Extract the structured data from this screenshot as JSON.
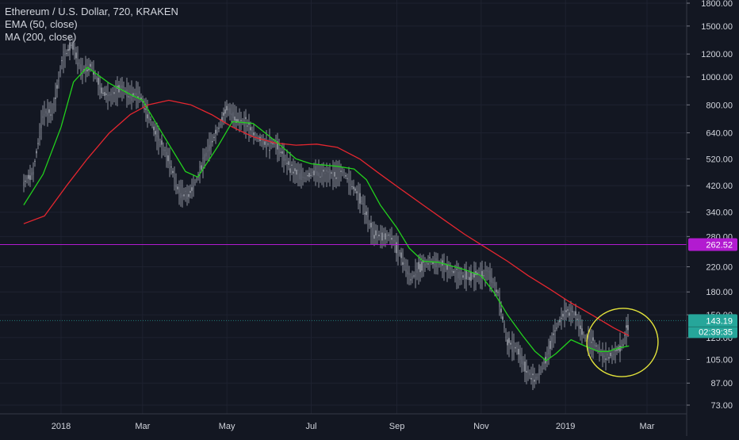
{
  "chart_data": {
    "type": "candlestick",
    "title": "Ethereum / U.S. Dollar, 720, KRAKEN",
    "indicators": [
      "EMA (50, close)",
      "MA (200, close)"
    ],
    "y_scale": "log",
    "ylim": [
      67,
      1900
    ],
    "y_ticks": [
      1800,
      1500,
      1200,
      1000,
      800,
      640,
      520,
      420,
      340,
      280,
      220,
      180,
      150,
      125,
      105,
      87,
      73
    ],
    "y_tick_labels": [
      "1800.00",
      "1500.00",
      "1200.00",
      "1000.00",
      "800.00",
      "640.00",
      "520.00",
      "420.00",
      "340.00",
      "280.00",
      "220.00",
      "180.00",
      "150.00",
      "125.00",
      "105.00",
      "87.00",
      "73.00"
    ],
    "x_ticks": [
      "2018-01-01",
      "2018-03-01",
      "2018-05-01",
      "2018-07-01",
      "2018-09-01",
      "2018-11-01",
      "2019-01-01",
      "2019-03-01"
    ],
    "x_tick_labels": [
      "2018",
      "Mar",
      "May",
      "Jul",
      "Sep",
      "Nov",
      "2019",
      "Mar"
    ],
    "price_close": {
      "dates": [
        "2017-12-05",
        "2017-12-12",
        "2017-12-19",
        "2017-12-26",
        "2018-01-02",
        "2018-01-09",
        "2018-01-16",
        "2018-01-23",
        "2018-01-30",
        "2018-02-06",
        "2018-02-13",
        "2018-02-20",
        "2018-02-27",
        "2018-03-06",
        "2018-03-13",
        "2018-03-20",
        "2018-03-27",
        "2018-04-03",
        "2018-04-10",
        "2018-04-17",
        "2018-04-24",
        "2018-05-01",
        "2018-05-08",
        "2018-05-15",
        "2018-05-22",
        "2018-05-29",
        "2018-06-05",
        "2018-06-12",
        "2018-06-19",
        "2018-06-26",
        "2018-07-03",
        "2018-07-10",
        "2018-07-17",
        "2018-07-24",
        "2018-07-31",
        "2018-08-07",
        "2018-08-14",
        "2018-08-21",
        "2018-08-28",
        "2018-09-04",
        "2018-09-11",
        "2018-09-18",
        "2018-09-25",
        "2018-10-02",
        "2018-10-09",
        "2018-10-16",
        "2018-10-23",
        "2018-10-30",
        "2018-11-06",
        "2018-11-13",
        "2018-11-20",
        "2018-11-27",
        "2018-12-04",
        "2018-12-11",
        "2018-12-18",
        "2018-12-25",
        "2019-01-01",
        "2019-01-08",
        "2019-01-15",
        "2019-01-22",
        "2019-01-29",
        "2019-02-05",
        "2019-02-12",
        "2019-02-16"
      ],
      "values": [
        430,
        470,
        750,
        760,
        1150,
        1300,
        1050,
        1100,
        900,
        850,
        920,
        870,
        870,
        720,
        600,
        520,
        400,
        390,
        450,
        560,
        650,
        780,
        720,
        690,
        620,
        590,
        590,
        520,
        470,
        450,
        470,
        460,
        460,
        470,
        420,
        370,
        290,
        280,
        280,
        240,
        200,
        220,
        230,
        225,
        215,
        205,
        205,
        205,
        210,
        180,
        120,
        115,
        95,
        90,
        105,
        135,
        155,
        150,
        125,
        118,
        108,
        110,
        120,
        143.19
      ]
    },
    "series": [
      {
        "name": "EMA (50, close)",
        "color": "#22d11d",
        "dates": [
          "2017-12-05",
          "2017-12-19",
          "2018-01-01",
          "2018-01-10",
          "2018-01-20",
          "2018-02-05",
          "2018-02-20",
          "2018-03-01",
          "2018-03-15",
          "2018-04-01",
          "2018-04-10",
          "2018-04-25",
          "2018-05-05",
          "2018-05-20",
          "2018-06-05",
          "2018-06-20",
          "2018-07-01",
          "2018-07-20",
          "2018-08-01",
          "2018-08-10",
          "2018-08-20",
          "2018-09-01",
          "2018-09-10",
          "2018-09-20",
          "2018-10-01",
          "2018-10-20",
          "2018-11-01",
          "2018-11-10",
          "2018-11-20",
          "2018-12-01",
          "2018-12-10",
          "2018-12-18",
          "2018-12-25",
          "2019-01-05",
          "2019-01-15",
          "2019-01-25",
          "2019-02-01",
          "2019-02-08",
          "2019-02-16"
        ],
        "values": [
          360,
          460,
          670,
          960,
          1080,
          950,
          870,
          830,
          640,
          470,
          450,
          580,
          700,
          690,
          600,
          520,
          500,
          490,
          480,
          440,
          360,
          300,
          255,
          230,
          228,
          215,
          205,
          180,
          150,
          127,
          112,
          104,
          110,
          123,
          117,
          112,
          112,
          115,
          117
        ]
      },
      {
        "name": "MA (200, close)",
        "color": "#e5262f",
        "dates": [
          "2017-12-05",
          "2017-12-20",
          "2018-01-05",
          "2018-01-20",
          "2018-02-05",
          "2018-02-20",
          "2018-03-05",
          "2018-03-20",
          "2018-04-05",
          "2018-04-20",
          "2018-05-05",
          "2018-05-20",
          "2018-06-05",
          "2018-06-20",
          "2018-07-05",
          "2018-07-20",
          "2018-08-05",
          "2018-08-20",
          "2018-09-05",
          "2018-09-20",
          "2018-10-05",
          "2018-10-20",
          "2018-11-05",
          "2018-11-20",
          "2018-12-05",
          "2018-12-20",
          "2019-01-05",
          "2019-01-20",
          "2019-02-05",
          "2019-02-16"
        ],
        "values": [
          310,
          330,
          420,
          520,
          640,
          740,
          800,
          830,
          800,
          740,
          670,
          620,
          590,
          580,
          585,
          570,
          520,
          460,
          405,
          360,
          320,
          285,
          255,
          230,
          205,
          185,
          165,
          150,
          135,
          127
        ]
      }
    ],
    "horizontal_line": {
      "value": 262.52,
      "label": "262.52",
      "color": "#b21bd0"
    },
    "last_price": {
      "value": 143.19,
      "label": "143.19",
      "color": "#26a69a"
    },
    "countdown": {
      "label": "02:39:35"
    },
    "annotation": {
      "shape": "ellipse",
      "color": "#e3e33b"
    }
  }
}
